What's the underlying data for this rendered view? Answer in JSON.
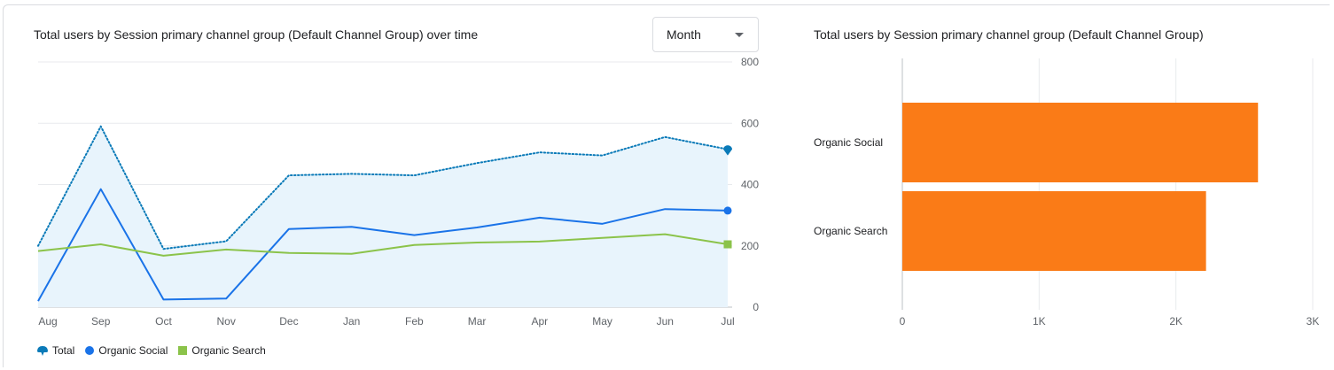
{
  "dropdown": {
    "value": "Month"
  },
  "chart_data": [
    {
      "type": "line",
      "title": "Total users by Session primary channel group (Default Channel Group) over time",
      "categories": [
        "Aug",
        "Sep",
        "Oct",
        "Nov",
        "Dec",
        "Jan",
        "Feb",
        "Mar",
        "Apr",
        "May",
        "Jun",
        "Jul"
      ],
      "ylim": [
        0,
        800
      ],
      "yticks": [
        "0",
        "200",
        "400",
        "600",
        "800"
      ],
      "y_axis_side": "right",
      "grid": true,
      "legend_position": "bottom-left",
      "series": [
        {
          "name": "Total",
          "style": "dotted",
          "fill": true,
          "color": "#0a7ab8",
          "values": [
            200,
            590,
            190,
            215,
            430,
            435,
            430,
            470,
            505,
            495,
            555,
            515
          ]
        },
        {
          "name": "Organic Social",
          "style": "solid",
          "color": "#1a73e8",
          "values": [
            20,
            385,
            25,
            28,
            255,
            262,
            235,
            260,
            292,
            272,
            320,
            315
          ]
        },
        {
          "name": "Organic Search",
          "style": "solid",
          "color": "#8bc34a",
          "values": [
            183,
            205,
            168,
            188,
            177,
            174,
            203,
            211,
            214,
            226,
            238,
            205
          ]
        }
      ]
    },
    {
      "type": "bar",
      "orientation": "horizontal",
      "title": "Total users by Session primary channel group (Default Channel Group)",
      "categories": [
        "Organic Social",
        "Organic Search"
      ],
      "values": [
        2600,
        2220
      ],
      "xlim": [
        0,
        3000
      ],
      "xticks": [
        "0",
        "1K",
        "2K",
        "3K"
      ],
      "grid": true,
      "color": "#fa7b17"
    }
  ]
}
